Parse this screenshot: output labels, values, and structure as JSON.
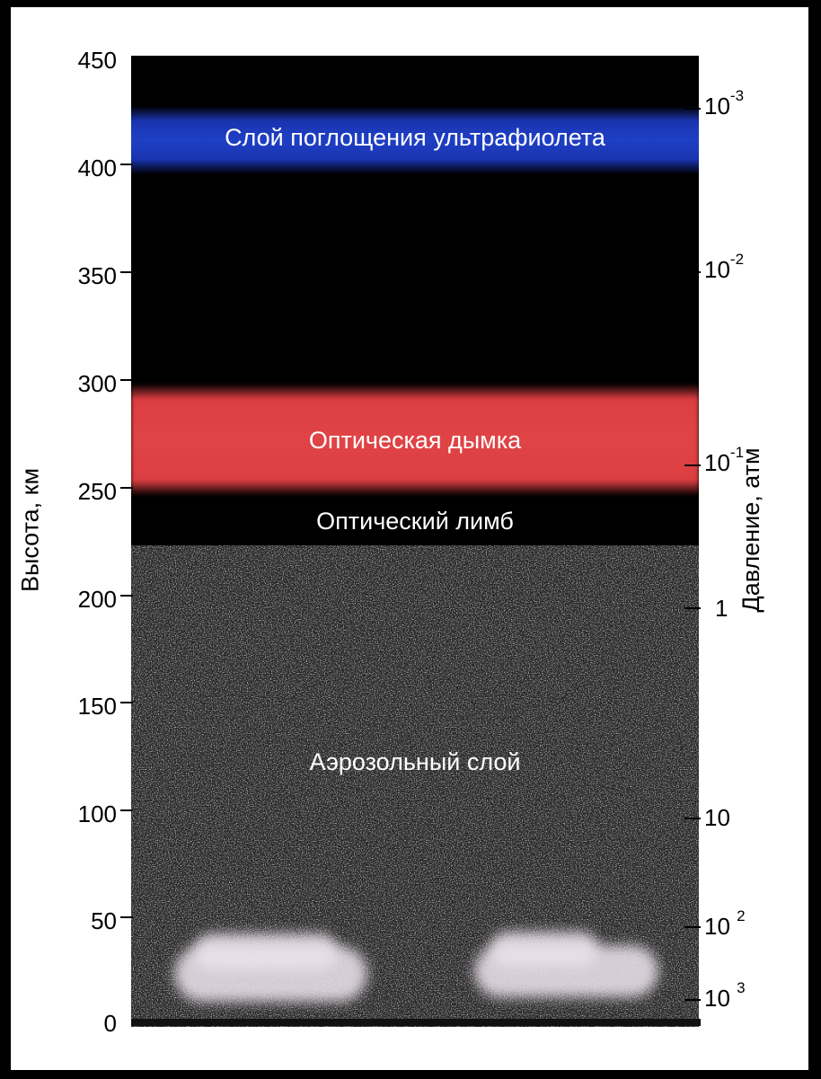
{
  "left_axis": {
    "title": "Высота, км",
    "ticks": [
      "450",
      "400",
      "350",
      "300",
      "250",
      "200",
      "150",
      "100",
      "50",
      "0"
    ]
  },
  "right_axis": {
    "title": "Давление, атм",
    "ticks": [
      {
        "base": "10",
        "exp": "-3"
      },
      {
        "base": "10",
        "exp": "-2"
      },
      {
        "base": "10",
        "exp": "-1"
      },
      {
        "base": "1",
        "exp": ""
      },
      {
        "base": "10",
        "exp": ""
      },
      {
        "base": "10 ",
        "exp": "2"
      },
      {
        "base": "10 ",
        "exp": "3"
      }
    ]
  },
  "layers": {
    "uv": "Слой поглощения ультрафиолета",
    "haze": "Оптическая дымка",
    "limb": "Оптический лимб",
    "aerosol": "Аэрозольный слой"
  },
  "colors": {
    "uv_band": "#1e3fc4",
    "haze_band": "#e04446",
    "background": "#000000",
    "aerosol": "#2b2b2b"
  }
}
